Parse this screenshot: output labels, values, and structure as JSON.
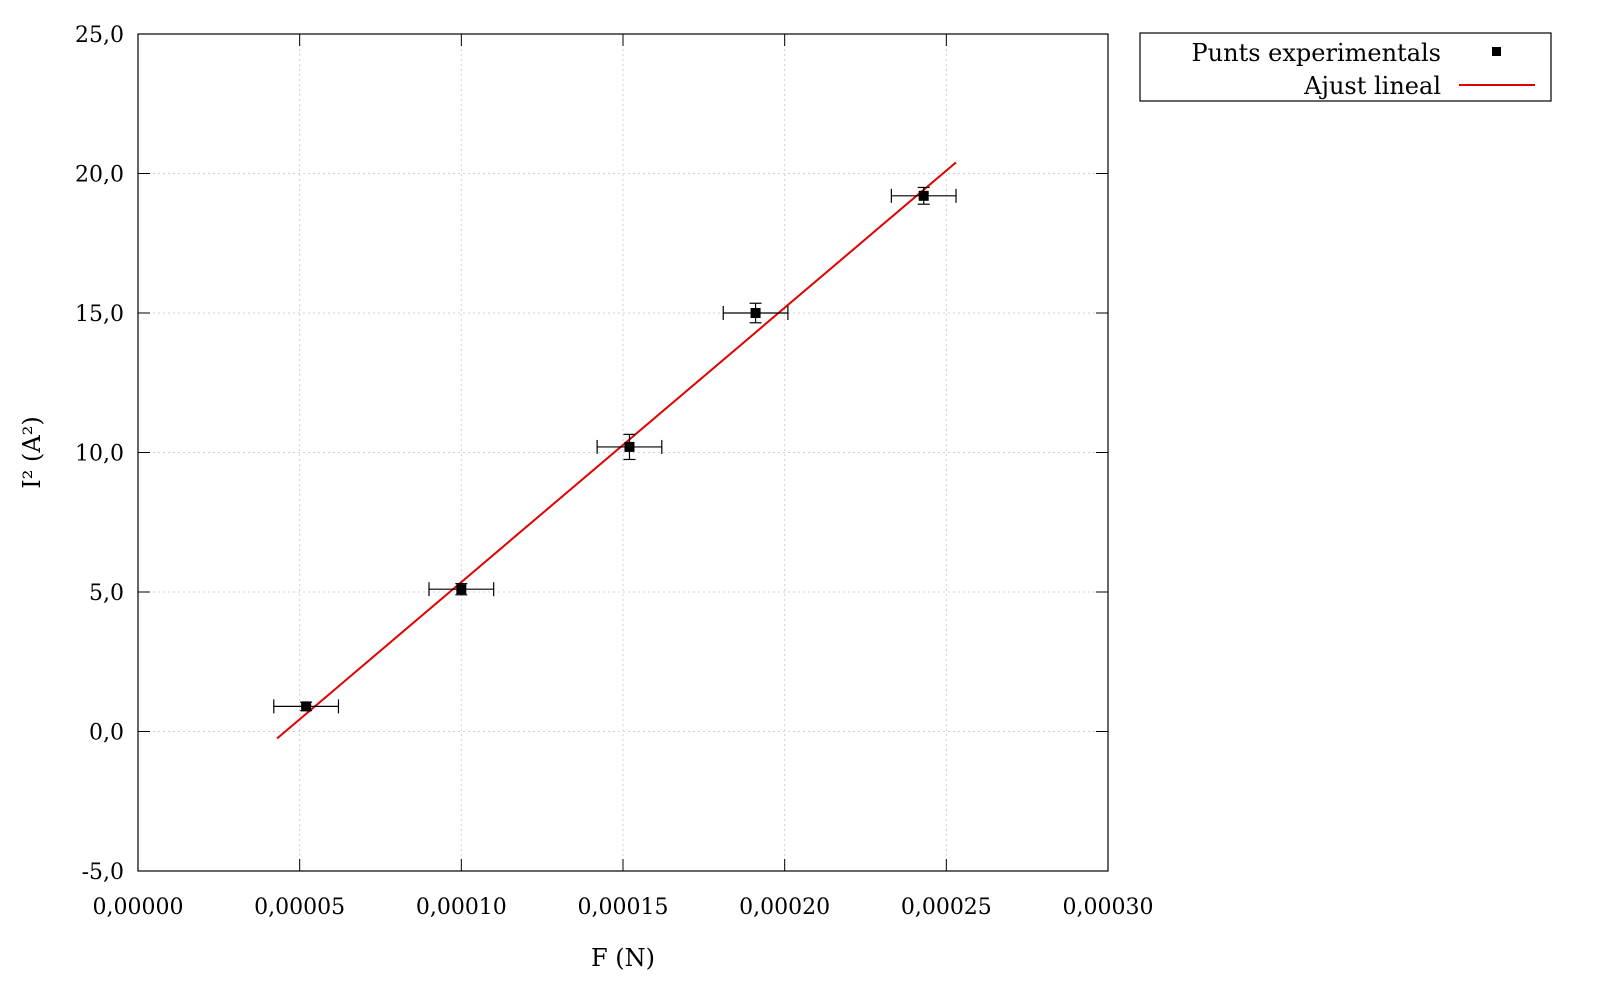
{
  "chart_data": {
    "type": "scatter",
    "xlabel": "F (N)",
    "ylabel": "I² (A²)",
    "xlim": [
      0.0,
      0.0003
    ],
    "ylim": [
      -5.0,
      25.0
    ],
    "x_ticks": [
      0.0,
      5e-05,
      0.0001,
      0.00015,
      0.0002,
      0.00025,
      0.0003
    ],
    "y_ticks": [
      -5.0,
      0.0,
      5.0,
      10.0,
      15.0,
      20.0,
      25.0
    ],
    "x_tick_labels": [
      "0,00000",
      "0,00005",
      "0,00010",
      "0,00015",
      "0,00020",
      "0,00025",
      "0,00030"
    ],
    "y_tick_labels": [
      "-5,0",
      "0,0",
      "5,0",
      "10,0",
      "15,0",
      "20,0",
      "25,0"
    ],
    "grid": true,
    "legend_position": "outside-top-right",
    "series": [
      {
        "name": "Punts experimentals",
        "kind": "points-with-errorbars",
        "color": "#000000",
        "points": [
          {
            "x": 5.2e-05,
            "y": 0.9,
            "xerr": 1e-05,
            "yerr": 0.15
          },
          {
            "x": 0.0001,
            "y": 5.1,
            "xerr": 1e-05,
            "yerr": 0.2
          },
          {
            "x": 0.000152,
            "y": 10.2,
            "xerr": 1e-05,
            "yerr": 0.45
          },
          {
            "x": 0.000191,
            "y": 15.0,
            "xerr": 1e-05,
            "yerr": 0.35
          },
          {
            "x": 0.000243,
            "y": 19.2,
            "xerr": 1e-05,
            "yerr": 0.3
          }
        ]
      },
      {
        "name": "Ajust lineal",
        "kind": "line",
        "color": "#e00000",
        "points": [
          {
            "x": 4.3e-05,
            "y": -0.25
          },
          {
            "x": 0.000253,
            "y": 20.4
          }
        ]
      }
    ]
  }
}
